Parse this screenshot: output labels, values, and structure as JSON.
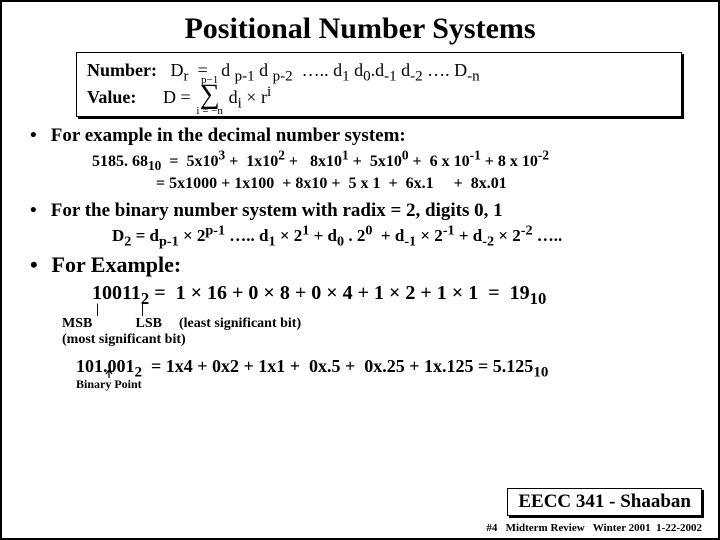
{
  "title": "Positional Number Systems",
  "box": {
    "number_label": "Number:",
    "number_expr": "D<sub>r</sub> &nbsp;= &nbsp; d <sub>p-1</sub> d <sub>p-2</sub> &nbsp;….. d<sub>1</sub> d<sub>0</sub>.d<sub>-1</sub> d<sub>-2</sub> …. D<sub>-n</sub>",
    "value_label": "Value:",
    "value_D": "D =",
    "sigma_top": "p−1",
    "sigma_bot": "i = −n",
    "value_body": "d<sub>i</sub> × r<sup>i</sup>"
  },
  "bullet1": "For example in the decimal number system:",
  "dec_line1": "5185. 68<sub>10</sub> &nbsp;= &nbsp;5x10<sup>3</sup> + &nbsp;1x10<sup>2</sup> + &nbsp; 8x10<sup>1</sup> + &nbsp;5x10<sup>0</sup> + &nbsp;6 x 10<sup>-1</sup> + 8 x 10<sup>-2</sup>",
  "dec_line2": "= 5x1000 + 1x100 &nbsp;+ 8x10 + &nbsp;5 x 1 &nbsp;+ &nbsp;6x.1 &nbsp;&nbsp;&nbsp; + &nbsp;8x.01",
  "bullet2": "For the binary number system with radix = 2, digits 0, 1",
  "d2line": "D<sub>2</sub> = d<sub>p-1</sub> × 2<sup>p-1</sup> ….. d<sub>1</sub> × 2<sup>1</sup> + d<sub>0</sub> . 2<sup>0</sup> &nbsp;+ d<sub>-1</sub> × 2<sup>-1</sup> + d<sub>-2</sub> × 2<sup>-2</sup> …..",
  "bullet3": "For Example:",
  "binexp": "10011<sub>2</sub> = &nbsp;1 × 16 + 0 × 8 + 0 × 4 + 1 × 2 + 1 × 1 &nbsp;= &nbsp;19<sub>10</sub>",
  "msb_mark1": "|",
  "msb_mark2": "|",
  "msb": "MSB",
  "lsb": "LSB",
  "lsb_note": "(least significant bit)",
  "msb_note": "(most significant bit)",
  "last_eq": "101.001<sub>2</sub> &nbsp;= 1x4 + 0x2 + 1x1 + &nbsp;0x.5 + &nbsp;0x.25 + 1x.125 = 5.125<sub>10</sub>",
  "bp_label": "Binary Point",
  "eecc": "EECC 341 - Shaaban",
  "footer": "#4 &nbsp; Midterm Review &nbsp; Winter 2001 &nbsp;1-22-2002"
}
